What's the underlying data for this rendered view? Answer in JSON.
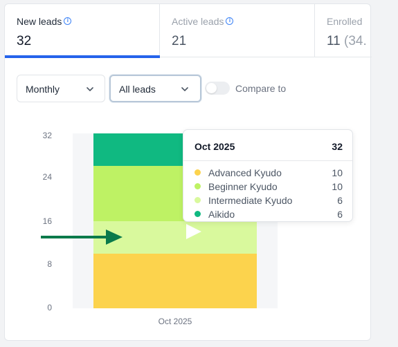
{
  "tabs": [
    {
      "label": "New leads",
      "value": "32",
      "suffix": "",
      "info": "i"
    },
    {
      "label": "Active leads",
      "value": "21",
      "suffix": "",
      "info": "i"
    },
    {
      "label": "Enrolled",
      "value": "11",
      "suffix": " (34.",
      "info": ""
    }
  ],
  "controls": {
    "period": "Monthly",
    "lead_filter": "All leads",
    "compare_label": "Compare to",
    "compare_enabled": false
  },
  "colors": {
    "accent": "#2563eb",
    "advanced_kyudo": "#fcd34d",
    "beginner_kyudo": "#bef264",
    "intermediate_kyudo": "#d9f99d",
    "aikido": "#10b981",
    "arrow": "#0b7a4b"
  },
  "chart_data": {
    "type": "bar",
    "stacked": true,
    "categories": [
      "Oct 2025"
    ],
    "yticks": [
      "0",
      "8",
      "16",
      "24",
      "32"
    ],
    "ylim": [
      0,
      32
    ],
    "series": [
      {
        "name": "Advanced Kyudo",
        "values": [
          10
        ]
      },
      {
        "name": "Beginner Kyudo",
        "values": [
          10
        ]
      },
      {
        "name": "Intermediate Kyudo",
        "values": [
          6
        ]
      },
      {
        "name": "Aikido",
        "values": [
          6
        ]
      }
    ],
    "stack_order_bottom_to_top": [
      "Advanced Kyudo",
      "Intermediate Kyudo",
      "Beginner Kyudo",
      "Aikido"
    ]
  },
  "tooltip": {
    "title": "Oct 2025",
    "total": "32",
    "rows": [
      {
        "label": "Advanced Kyudo",
        "value": "10"
      },
      {
        "label": "Beginner Kyudo",
        "value": "10"
      },
      {
        "label": "Intermediate Kyudo",
        "value": "6"
      },
      {
        "label": "Aikido",
        "value": "6"
      }
    ]
  },
  "icons": {
    "chevron": "chevron-down-icon",
    "info": "info-icon",
    "annotation": "arrow-right-icon",
    "pointer": "pointer-cursor"
  }
}
